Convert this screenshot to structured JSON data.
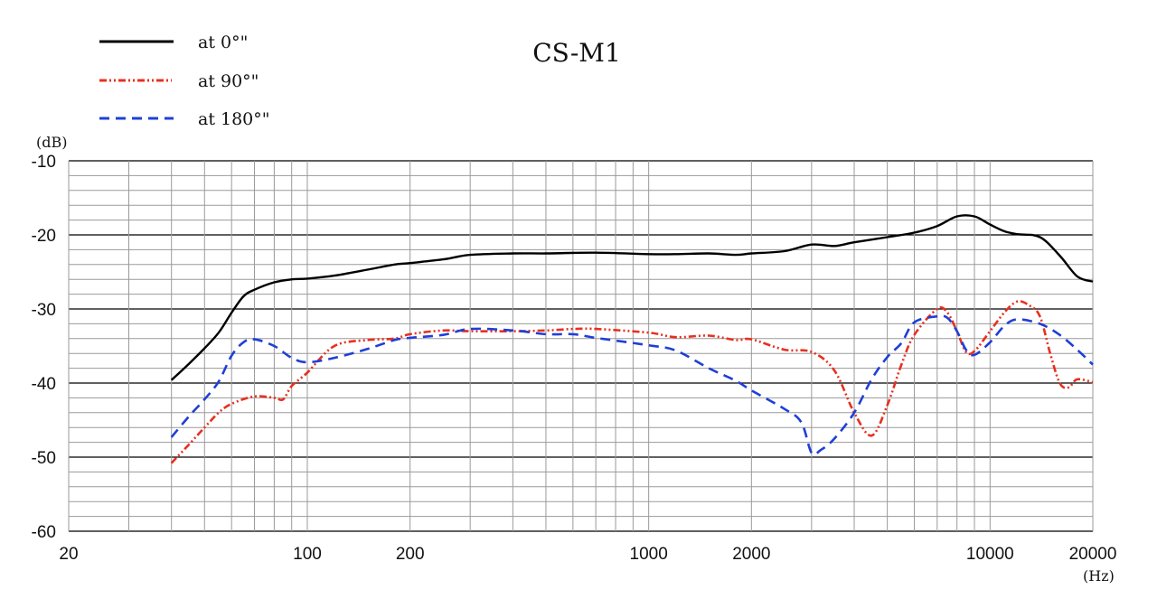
{
  "chart_data": {
    "type": "line",
    "title": "CS-M1",
    "xlabel": "(Hz)",
    "ylabel": "(dB)",
    "xscale": "log",
    "xlim": [
      20,
      20000
    ],
    "ylim": [
      -60,
      -10
    ],
    "x_tick_labels": [
      "20",
      "100",
      "200",
      "1000",
      "2000",
      "10000",
      "20000"
    ],
    "x_ticks": [
      20,
      100,
      200,
      1000,
      2000,
      10000,
      20000
    ],
    "y_tick_labels": [
      "-10",
      "-20",
      "-30",
      "-40",
      "-50",
      "-60"
    ],
    "y_ticks": [
      -10,
      -20,
      -30,
      -40,
      -50,
      -60
    ],
    "grid": true,
    "grid_minor_y_step": 2,
    "legend_position": "top-left",
    "series": [
      {
        "name": "at 0°\"",
        "color": "#000000",
        "style": "solid",
        "x": [
          40,
          45,
          50,
          55,
          60,
          65,
          70,
          80,
          90,
          100,
          120,
          150,
          180,
          200,
          250,
          300,
          400,
          500,
          700,
          1000,
          1200,
          1500,
          1800,
          2000,
          2500,
          3000,
          3500,
          4000,
          5000,
          6000,
          7000,
          8000,
          9000,
          10000,
          11000,
          12000,
          14000,
          16000,
          18000,
          20000
        ],
        "y": [
          -39.6,
          -37.4,
          -35.3,
          -33.2,
          -30.5,
          -28.3,
          -27.4,
          -26.4,
          -26.0,
          -25.9,
          -25.5,
          -24.7,
          -24.0,
          -23.8,
          -23.3,
          -22.7,
          -22.5,
          -22.5,
          -22.4,
          -22.6,
          -22.6,
          -22.5,
          -22.7,
          -22.5,
          -22.2,
          -21.3,
          -21.5,
          -21.0,
          -20.3,
          -19.7,
          -18.8,
          -17.5,
          -17.5,
          -18.6,
          -19.5,
          -19.9,
          -20.3,
          -22.8,
          -25.6,
          -26.3
        ]
      },
      {
        "name": "at 90°\"",
        "color": "#e8301f",
        "style": "dash-dot-dot",
        "x": [
          40,
          45,
          50,
          55,
          60,
          70,
          80,
          85,
          90,
          100,
          120,
          150,
          180,
          200,
          250,
          300,
          400,
          500,
          600,
          700,
          1000,
          1200,
          1500,
          1800,
          2000,
          2500,
          3000,
          3500,
          4000,
          4500,
          5000,
          5500,
          6000,
          7000,
          7500,
          8000,
          8500,
          9000,
          10000,
          11000,
          12000,
          13000,
          14000,
          15000,
          16000,
          17000,
          18000,
          20000
        ],
        "y": [
          -50.8,
          -48.3,
          -46.0,
          -44.0,
          -42.8,
          -41.8,
          -42.0,
          -42.2,
          -40.4,
          -38.6,
          -35.0,
          -34.2,
          -34.0,
          -33.4,
          -32.9,
          -33.0,
          -33.0,
          -32.9,
          -32.7,
          -32.7,
          -33.2,
          -33.8,
          -33.6,
          -34.2,
          -34.1,
          -35.5,
          -35.8,
          -38.3,
          -44.0,
          -47.1,
          -43.0,
          -37.5,
          -33.5,
          -30.0,
          -30.5,
          -33.0,
          -35.8,
          -35.7,
          -33.0,
          -30.5,
          -29.0,
          -29.5,
          -31.0,
          -36.0,
          -40.0,
          -40.6,
          -39.5,
          -39.9
        ]
      },
      {
        "name": "at 180°\"",
        "color": "#1f3fd8",
        "style": "dashed",
        "x": [
          40,
          45,
          50,
          55,
          60,
          65,
          70,
          80,
          90,
          100,
          120,
          150,
          180,
          200,
          250,
          300,
          400,
          500,
          600,
          700,
          1000,
          1200,
          1500,
          1800,
          2000,
          2500,
          2800,
          3000,
          3200,
          3500,
          4000,
          4500,
          5000,
          5500,
          6000,
          7000,
          7500,
          8000,
          8500,
          9000,
          10000,
          11000,
          12000,
          14000,
          16000,
          18000,
          20000
        ],
        "y": [
          -47.3,
          -44.5,
          -42.2,
          -39.8,
          -36.3,
          -34.5,
          -34.1,
          -35.0,
          -36.6,
          -37.2,
          -36.6,
          -35.4,
          -34.2,
          -33.9,
          -33.5,
          -32.7,
          -32.9,
          -33.4,
          -33.4,
          -33.9,
          -34.9,
          -35.6,
          -38.0,
          -39.7,
          -41.0,
          -43.5,
          -45.3,
          -49.4,
          -49.0,
          -47.5,
          -44.0,
          -39.5,
          -36.5,
          -34.6,
          -31.8,
          -31.0,
          -31.2,
          -33.0,
          -35.5,
          -36.2,
          -34.5,
          -32.3,
          -31.4,
          -32.0,
          -33.5,
          -35.5,
          -37.5
        ]
      }
    ]
  }
}
